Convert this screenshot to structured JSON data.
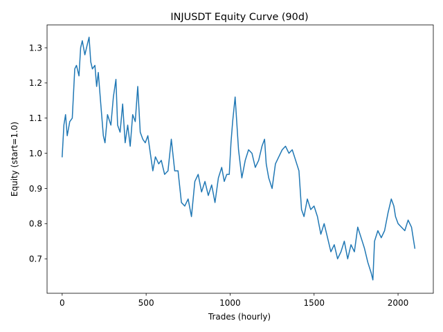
{
  "chart_data": {
    "type": "line",
    "title": "INJUSDT Equity Curve (90d)",
    "xlabel": "Trades (hourly)",
    "ylabel": "Equity (start=1.0)",
    "xlim": [
      -90,
      2210
    ],
    "ylim": [
      0.602,
      1.365
    ],
    "xticks": [
      0,
      500,
      1000,
      1500,
      2000
    ],
    "xtick_labels": [
      "0",
      "500",
      "1000",
      "1500",
      "2000"
    ],
    "yticks": [
      0.7,
      0.8,
      0.9,
      1.0,
      1.1,
      1.2,
      1.3
    ],
    "ytick_labels": [
      "0.7",
      "0.8",
      "0.9",
      "1.0",
      "1.1",
      "1.2",
      "1.3"
    ],
    "grid": false,
    "legend": "none",
    "series": [
      {
        "color": "#1f77b4",
        "x": [
          0,
          10,
          20,
          30,
          45,
          60,
          75,
          85,
          100,
          110,
          120,
          135,
          150,
          160,
          170,
          180,
          195,
          205,
          215,
          230,
          245,
          255,
          270,
          290,
          305,
          320,
          330,
          345,
          360,
          375,
          390,
          405,
          420,
          435,
          450,
          465,
          480,
          495,
          510,
          525,
          540,
          555,
          575,
          590,
          610,
          630,
          650,
          670,
          690,
          710,
          730,
          750,
          770,
          790,
          810,
          830,
          850,
          870,
          890,
          910,
          930,
          950,
          965,
          980,
          995,
          1005,
          1015,
          1030,
          1050,
          1070,
          1090,
          1110,
          1130,
          1150,
          1170,
          1190,
          1205,
          1215,
          1230,
          1250,
          1270,
          1290,
          1310,
          1330,
          1350,
          1370,
          1390,
          1410,
          1425,
          1440,
          1460,
          1480,
          1500,
          1520,
          1540,
          1560,
          1580,
          1600,
          1620,
          1640,
          1660,
          1680,
          1700,
          1720,
          1740,
          1760,
          1780,
          1800,
          1820,
          1840,
          1850,
          1860,
          1880,
          1900,
          1920,
          1940,
          1960,
          1975,
          1985,
          2000,
          2020,
          2040,
          2060,
          2080,
          2090,
          2100
        ],
        "y": [
          0.99,
          1.08,
          1.11,
          1.05,
          1.09,
          1.1,
          1.24,
          1.25,
          1.22,
          1.3,
          1.32,
          1.28,
          1.31,
          1.33,
          1.26,
          1.24,
          1.25,
          1.19,
          1.23,
          1.14,
          1.05,
          1.03,
          1.11,
          1.08,
          1.16,
          1.21,
          1.08,
          1.06,
          1.14,
          1.03,
          1.08,
          1.02,
          1.11,
          1.09,
          1.19,
          1.06,
          1.04,
          1.03,
          1.05,
          1.0,
          0.95,
          0.99,
          0.97,
          0.98,
          0.94,
          0.95,
          1.04,
          0.95,
          0.95,
          0.86,
          0.85,
          0.87,
          0.82,
          0.92,
          0.94,
          0.89,
          0.92,
          0.88,
          0.91,
          0.86,
          0.93,
          0.96,
          0.92,
          0.94,
          0.94,
          1.03,
          1.09,
          1.16,
          1.01,
          0.93,
          0.98,
          1.01,
          1.0,
          0.96,
          0.98,
          1.02,
          1.04,
          0.97,
          0.93,
          0.9,
          0.97,
          0.99,
          1.01,
          1.02,
          1.0,
          1.01,
          0.98,
          0.95,
          0.84,
          0.82,
          0.87,
          0.84,
          0.85,
          0.82,
          0.77,
          0.8,
          0.76,
          0.72,
          0.74,
          0.7,
          0.72,
          0.75,
          0.7,
          0.74,
          0.72,
          0.79,
          0.76,
          0.73,
          0.69,
          0.66,
          0.64,
          0.75,
          0.78,
          0.76,
          0.78,
          0.83,
          0.87,
          0.85,
          0.82,
          0.8,
          0.79,
          0.78,
          0.81,
          0.79,
          0.76,
          0.73
        ]
      }
    ]
  }
}
